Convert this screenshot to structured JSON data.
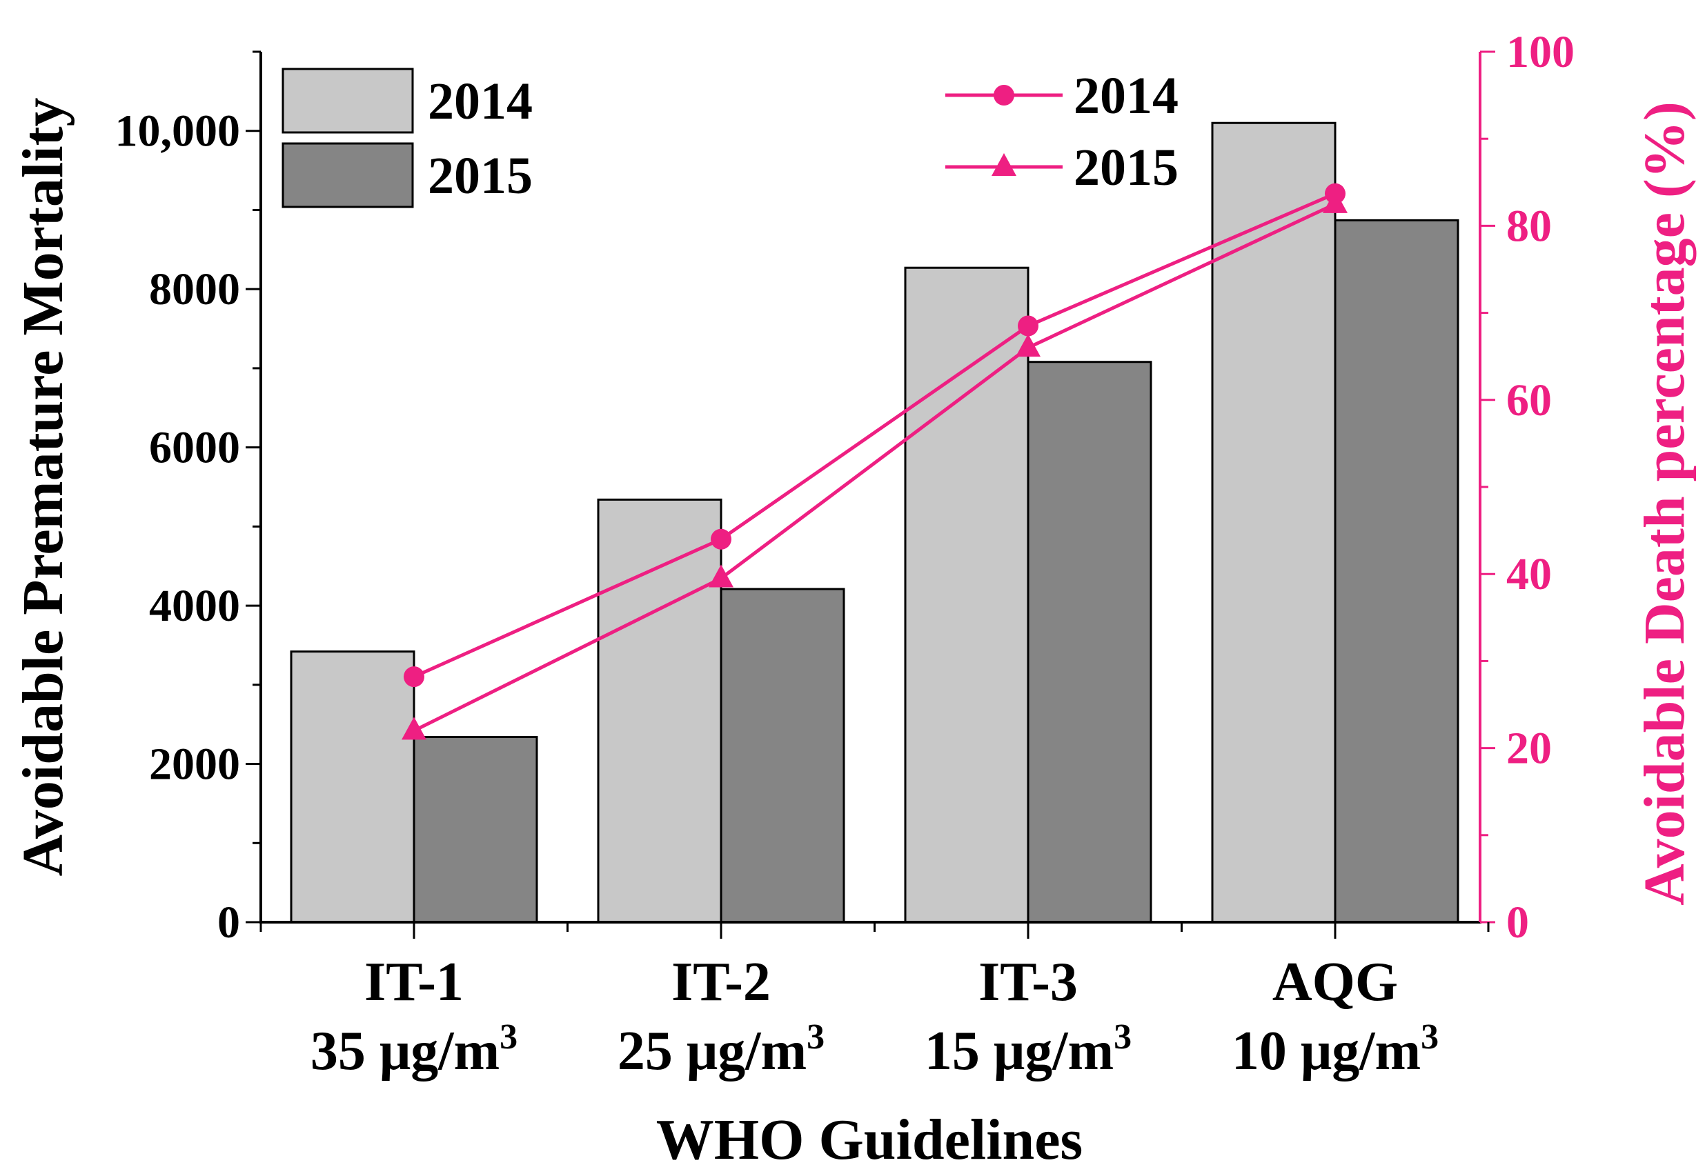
{
  "chart_data": {
    "type": "bar",
    "xlabel": "WHO Guidelines",
    "ylabel": "Avoidable Premature Mortality",
    "y2label": "Avoidable Death percentage (%)",
    "ylim": [
      0,
      11000
    ],
    "y2lim": [
      0,
      100
    ],
    "yticks": [
      0,
      2000,
      4000,
      6000,
      8000,
      10000
    ],
    "ytick_labels": [
      "0",
      "2000",
      "4000",
      "6000",
      "8000",
      "10,000"
    ],
    "y2ticks": [
      0,
      20,
      40,
      60,
      80,
      100
    ],
    "y2tick_labels": [
      "0",
      "20",
      "40",
      "60",
      "80",
      "100"
    ],
    "categories": [
      {
        "name": "IT-1",
        "conc": "35 μg/m",
        "sup": "3"
      },
      {
        "name": "IT-2",
        "conc": "25 μg/m",
        "sup": "3"
      },
      {
        "name": "IT-3",
        "conc": "15 μg/m",
        "sup": "3"
      },
      {
        "name": "AQG",
        "conc": "10 μg/m",
        "sup": "3"
      }
    ],
    "bar_series": [
      {
        "name": "2014",
        "values": [
          3420,
          5340,
          8270,
          10100
        ],
        "color": "#c8c8c8"
      },
      {
        "name": "2015",
        "values": [
          2340,
          4210,
          7080,
          8870
        ],
        "color": "#858585"
      }
    ],
    "line_series": [
      {
        "name": "2014",
        "marker": "circle",
        "values": [
          28.2,
          44.0,
          68.5,
          83.7
        ],
        "color": "#ee1f82"
      },
      {
        "name": "2015",
        "marker": "triangle",
        "values": [
          22.0,
          39.5,
          66.0,
          82.5
        ],
        "color": "#ee1f82"
      }
    ],
    "bar_legend_position": "top-left",
    "line_legend_position": "top-center",
    "grid": false
  }
}
